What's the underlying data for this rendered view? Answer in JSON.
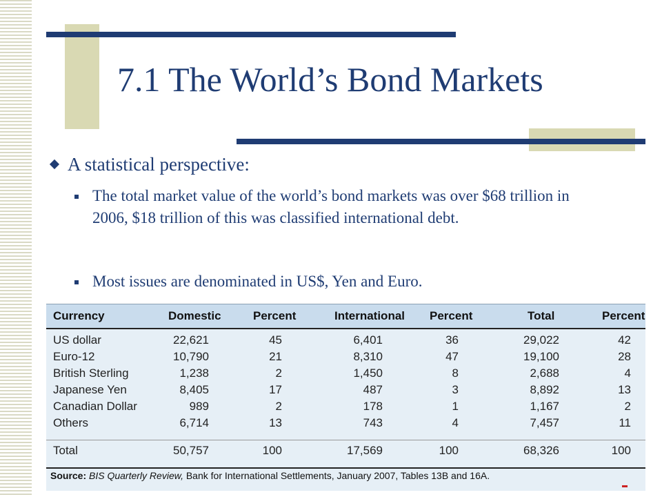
{
  "slide": {
    "title": "7.1 The World’s Bond Markets",
    "bullet": "A statistical perspective:",
    "sub_bullets": [
      "The total market value of the world’s bond markets was over $68 trillion in 2006, $18 trillion of this was classified international debt.",
      "Most issues are denominated in US$, Yen and Euro."
    ]
  },
  "table": {
    "headers": [
      "Currency",
      "Domestic",
      "Percent",
      "International",
      "Percent",
      "Total",
      "Percent"
    ],
    "rows": [
      [
        "US dollar",
        "22,621",
        "45",
        "6,401",
        "36",
        "29,022",
        "42"
      ],
      [
        "Euro-12",
        "10,790",
        "21",
        "8,310",
        "47",
        "19,100",
        "28"
      ],
      [
        "British Sterling",
        "1,238",
        "2",
        "1,450",
        "8",
        "2,688",
        "4"
      ],
      [
        "Japanese Yen",
        "8,405",
        "17",
        "487",
        "3",
        "8,892",
        "13"
      ],
      [
        "Canadian Dollar",
        "989",
        "2",
        "178",
        "1",
        "1,167",
        "2"
      ],
      [
        "Others",
        "6,714",
        "13",
        "743",
        "4",
        "7,457",
        "11"
      ]
    ],
    "total_row": [
      "Total",
      "50,757",
      "100",
      "17,569",
      "100",
      "68,326",
      "100"
    ],
    "source_label": "Source:",
    "source_pub": "BIS Quarterly Review,",
    "source_rest": "Bank for International Settlements, January 2007, Tables 13B and 16A."
  },
  "colors": {
    "title": "#1f3c73",
    "decor_bar": "#1f3c73",
    "decor_block": "#d9d9b3",
    "table_bg": "#e6eff6",
    "table_header_bg": "#c9dced"
  }
}
